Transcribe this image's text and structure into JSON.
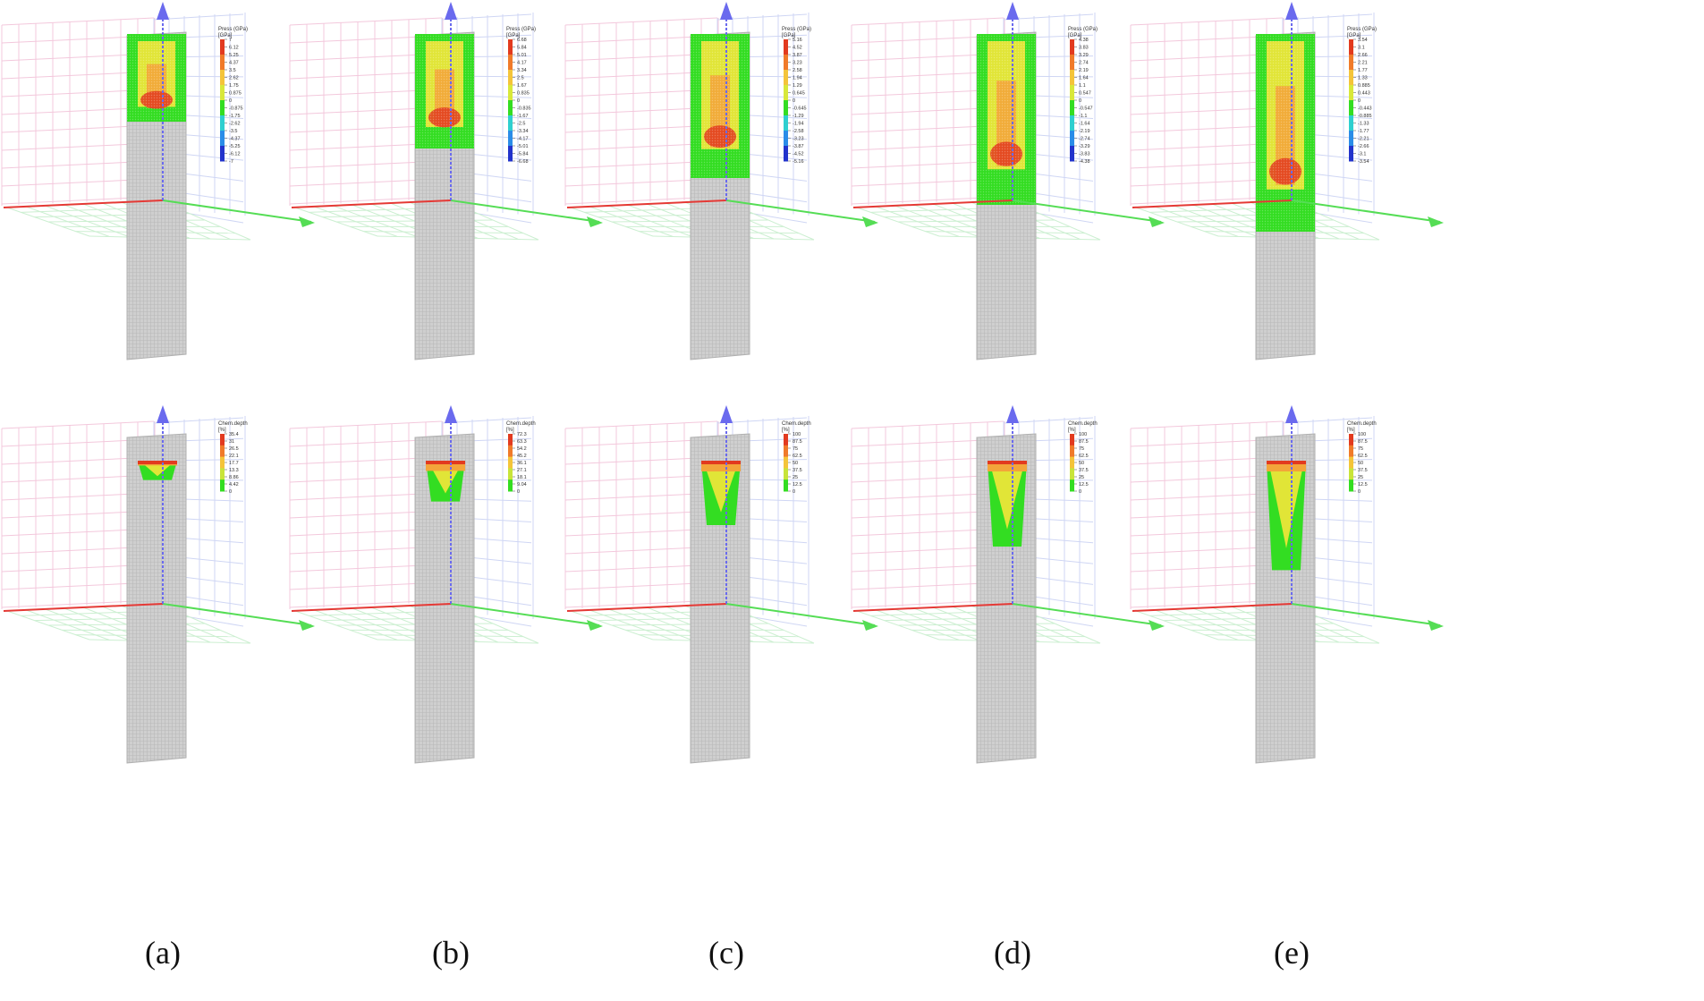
{
  "figure": {
    "panels": [
      {
        "label": "(a)",
        "pressure": {
          "title": "Press (GPa)",
          "unit": "[GPa]",
          "ticks": [
            "7",
            "6.12",
            "5.25",
            "4.37",
            "3.5",
            "2.62",
            "1.75",
            "0.875",
            "0",
            "-0.875",
            "-1.75",
            "-2.62",
            "-3.5",
            "-4.37",
            "-5.25",
            "-6.12",
            "-7"
          ],
          "fill": 0.26
        },
        "chem": {
          "title": "Chem.depth",
          "unit": "[%]",
          "ticks": [
            "35.4",
            "31",
            "26.5",
            "22.1",
            "17.7",
            "13.3",
            "8.86",
            "4.42",
            "0"
          ],
          "fill": 0.09
        }
      },
      {
        "label": "(b)",
        "pressure": {
          "title": "Press (GPa)",
          "unit": "[GPa]",
          "ticks": [
            "6.68",
            "5.84",
            "5.01",
            "4.17",
            "3.34",
            "2.5",
            "1.67",
            "0.835",
            "0",
            "-0.835",
            "-1.67",
            "-2.5",
            "-3.34",
            "-4.17",
            "-5.01",
            "-5.84",
            "-6.68"
          ],
          "fill": 0.36
        },
        "chem": {
          "title": "Chem.depth",
          "unit": "[%]",
          "ticks": [
            "72.3",
            "63.3",
            "54.2",
            "45.2",
            "36.1",
            "27.1",
            "18.1",
            "9.04",
            "0"
          ],
          "fill": 0.19
        }
      },
      {
        "label": "(c)",
        "pressure": {
          "title": "Press (GPa)",
          "unit": "[GPa]",
          "ticks": [
            "5.16",
            "4.52",
            "3.87",
            "3.23",
            "2.58",
            "1.94",
            "1.29",
            "0.645",
            "0",
            "-0.645",
            "-1.29",
            "-1.94",
            "-2.58",
            "-3.23",
            "-3.87",
            "-4.52",
            "-5.16"
          ],
          "fill": 0.47
        },
        "chem": {
          "title": "Chem.depth",
          "unit": "[%]",
          "ticks": [
            "100",
            "87.5",
            "75",
            "62.5",
            "50",
            "37.5",
            "25",
            "12.5",
            "0"
          ],
          "fill": 0.3
        }
      },
      {
        "label": "(d)",
        "pressure": {
          "title": "Press (GPa)",
          "unit": "[GPa]",
          "ticks": [
            "4.38",
            "3.83",
            "3.29",
            "2.74",
            "2.19",
            "1.64",
            "1.1",
            "0.547",
            "0",
            "-0.547",
            "-1.1",
            "-1.64",
            "-2.19",
            "-2.74",
            "-3.29",
            "-3.83",
            "-4.38"
          ],
          "fill": 0.57
        },
        "chem": {
          "title": "Chem.depth",
          "unit": "[%]",
          "ticks": [
            "100",
            "87.5",
            "75",
            "62.5",
            "50",
            "37.5",
            "25",
            "12.5",
            "0"
          ],
          "fill": 0.4
        }
      },
      {
        "label": "(e)",
        "pressure": {
          "title": "Press (GPa)",
          "unit": "[GPa]",
          "ticks": [
            "3.54",
            "3.1",
            "2.66",
            "2.21",
            "1.77",
            "1.33",
            "0.885",
            "0.443",
            "0",
            "-0.443",
            "-0.885",
            "-1.33",
            "-1.77",
            "-2.21",
            "-2.66",
            "-3.1",
            "-3.54"
          ],
          "fill": 0.67
        },
        "chem": {
          "title": "Chem.depth",
          "unit": "[%]",
          "ticks": [
            "100",
            "87.5",
            "75",
            "62.5",
            "50",
            "37.5",
            "25",
            "12.5",
            "0"
          ],
          "fill": 0.51
        }
      }
    ],
    "colors": {
      "x_axis": "#e53935",
      "y_axis": "#55dd55",
      "z_axis": "#6a6aee",
      "grid_pink": "#f3c8dc",
      "grid_blue": "#cfd6f4",
      "grid_green": "#ccefd1",
      "specimen": "#c8c8c8",
      "damage_green": "#33dd22",
      "damage_yellow": "#f4e63a",
      "damage_orange": "#f3a53a",
      "damage_red": "#e23a1f"
    }
  }
}
